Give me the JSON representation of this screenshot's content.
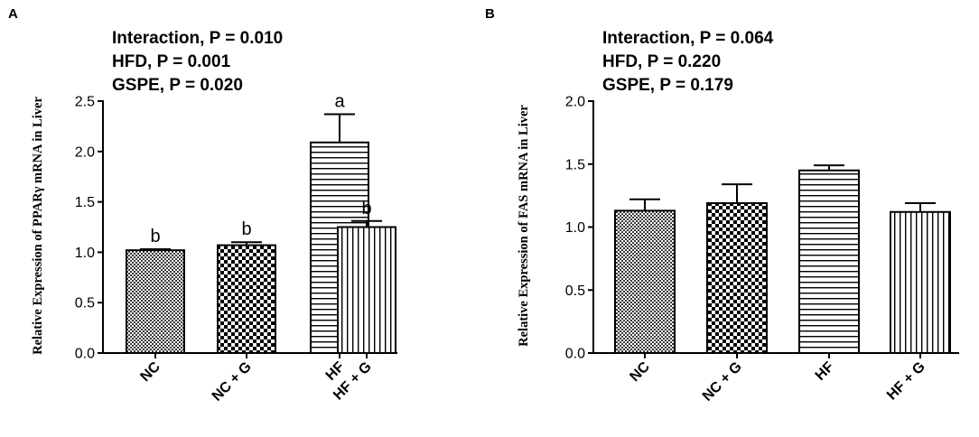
{
  "chart_data": [
    {
      "panel": "A",
      "type": "bar",
      "stats": [
        "Interaction, P = 0.010",
        "HFD, P = 0.001",
        "GSPE, P = 0.020"
      ],
      "ylabel": "Relative Expression of PPARγ  mRNA in Liver",
      "xlabel": "",
      "ylim": [
        0,
        2.5
      ],
      "yticks": [
        "0.0",
        "0.5",
        "1.0",
        "1.5",
        "2.0",
        "2.5"
      ],
      "categories": [
        "NC",
        "NC + G",
        "HF",
        "HF + G"
      ],
      "values": [
        1.02,
        1.07,
        2.09,
        1.25
      ],
      "errors": [
        0.01,
        0.03,
        0.28,
        0.06
      ],
      "significance": [
        "b",
        "b",
        "a",
        "b"
      ],
      "patterns": [
        "fine-check",
        "checker",
        "horizontal",
        "vertical"
      ]
    },
    {
      "panel": "B",
      "type": "bar",
      "stats": [
        "Interaction, P = 0.064",
        "HFD, P = 0.220",
        "GSPE, P = 0.179"
      ],
      "ylabel": "Relative Expression of FAS mRNA in Liver",
      "xlabel": "",
      "ylim": [
        0,
        2.0
      ],
      "yticks": [
        "0.0",
        "0.5",
        "1.0",
        "1.5",
        "2.0"
      ],
      "categories": [
        "NC",
        "NC + G",
        "HF",
        "HF + G"
      ],
      "values": [
        1.13,
        1.19,
        1.45,
        1.12
      ],
      "errors": [
        0.09,
        0.15,
        0.04,
        0.07
      ],
      "significance": [],
      "patterns": [
        "fine-check",
        "checker",
        "horizontal",
        "vertical"
      ]
    }
  ]
}
